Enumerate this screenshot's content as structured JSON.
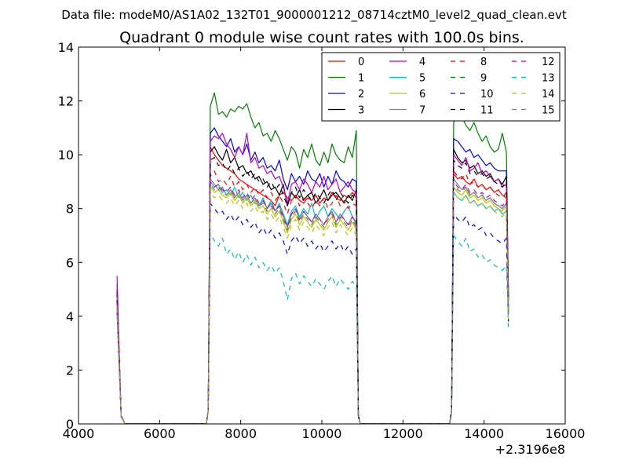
{
  "chart_data": {
    "type": "line",
    "suptitle": "Data file: modeM0/AS1A02_132T01_9000001212_08714cztM0_level2_quad_clean.evt",
    "title": "Quadrant 0 module wise count rates with 100.0s bins.",
    "xlabel": "",
    "ylabel": "",
    "x_offset_label": "+2.3196e8",
    "xlim": [
      4000,
      16000
    ],
    "ylim": [
      0,
      14
    ],
    "xticks": [
      "4000",
      "6000",
      "8000",
      "10000",
      "12000",
      "14000",
      "16000"
    ],
    "yticks": [
      "0",
      "2",
      "4",
      "6",
      "8",
      "10",
      "12",
      "14"
    ],
    "legend": {
      "location": "top-right",
      "columns": 4
    },
    "bin_seconds": 100,
    "segments": [
      {
        "x_start": 4950,
        "x_end": 5050
      },
      {
        "x_start": 7250,
        "x_end": 10850
      },
      {
        "x_start": 13250,
        "x_end": 14550
      }
    ],
    "gap_points": {
      "zero_x": [
        5150,
        7150,
        10950,
        13150
      ],
      "tail_x": 14600
    },
    "series": [
      {
        "name": "0",
        "color": "#ff0000",
        "dash": "solid",
        "first_point": 4.8,
        "tail": 4.4,
        "seg2": [
          10.3,
          10.0,
          9.8,
          9.6,
          9.5,
          9.4,
          9.3,
          9.1,
          9.0,
          8.9,
          8.8,
          8.7,
          8.6,
          8.5,
          8.4,
          8.3,
          8.1,
          8.5,
          8.6,
          8.4,
          8.3,
          8.5,
          8.3,
          8.2,
          8.4,
          8.3,
          8.5,
          8.2,
          8.4,
          8.3,
          8.6,
          8.4,
          8.3,
          8.5,
          8.4,
          8.6,
          8.4
        ],
        "seg3": [
          9.3,
          9.1,
          9.2,
          9.0,
          8.9,
          9.1,
          8.8,
          8.9,
          8.7,
          8.8,
          8.6,
          8.7,
          8.5,
          8.4
        ]
      },
      {
        "name": "1",
        "color": "#008000",
        "dash": "solid",
        "first_point": 5.2,
        "tail": 4.8,
        "seg2": [
          11.8,
          12.3,
          11.5,
          11.6,
          11.4,
          11.7,
          11.6,
          11.8,
          11.7,
          11.9,
          11.4,
          11.0,
          11.2,
          10.7,
          10.8,
          10.5,
          10.9,
          10.6,
          10.2,
          9.8,
          10.3,
          10.1,
          9.5,
          10.2,
          9.9,
          10.4,
          9.8,
          9.6,
          10.1,
          9.7,
          10.4,
          10.0,
          9.8,
          9.7,
          10.3,
          9.9,
          10.9
        ],
        "seg3": [
          11.2,
          11.5,
          11.4,
          11.1,
          10.9,
          11.2,
          10.8,
          10.5,
          10.7,
          10.3,
          10.1,
          10.2,
          10.8,
          10.1
        ]
      },
      {
        "name": "2",
        "color": "#0000ff",
        "dash": "solid",
        "first_point": 5.0,
        "tail": 4.7,
        "seg2": [
          10.8,
          11.0,
          10.7,
          10.5,
          10.3,
          10.6,
          10.1,
          10.3,
          10.0,
          10.4,
          9.8,
          10.1,
          9.7,
          9.9,
          9.5,
          9.6,
          9.4,
          9.8,
          9.1,
          8.7,
          9.3,
          9.0,
          9.2,
          8.9,
          9.4,
          9.1,
          9.0,
          9.3,
          8.8,
          9.2,
          8.9,
          9.4,
          9.1,
          9.0,
          8.8,
          9.1,
          9.0
        ],
        "seg3": [
          10.6,
          10.5,
          10.3,
          10.1,
          10.2,
          9.9,
          10.0,
          9.8,
          9.6,
          9.7,
          9.5,
          9.4,
          9.4,
          9.4
        ]
      },
      {
        "name": "3",
        "color": "#000000",
        "dash": "solid",
        "first_point": 4.9,
        "tail": 4.6,
        "seg2": [
          10.1,
          10.3,
          10.0,
          9.8,
          10.2,
          9.7,
          9.9,
          9.5,
          9.6,
          9.3,
          9.4,
          9.1,
          9.2,
          8.9,
          9.0,
          8.7,
          8.8,
          8.5,
          8.9,
          8.1,
          8.6,
          8.4,
          8.7,
          8.3,
          8.5,
          8.6,
          8.2,
          8.4,
          8.7,
          8.3,
          8.5,
          8.6,
          8.4,
          8.2,
          8.5,
          8.3,
          8.7
        ],
        "seg3": [
          10.2,
          9.9,
          9.7,
          9.8,
          9.5,
          9.6,
          9.3,
          9.4,
          9.2,
          9.3,
          9.0,
          9.1,
          8.9,
          9.2
        ]
      },
      {
        "name": "4",
        "color": "#bf00bf",
        "dash": "solid",
        "first_point": 5.5,
        "tail": 5.0,
        "seg2": [
          10.5,
          10.7,
          10.6,
          10.8,
          10.4,
          10.2,
          9.9,
          10.3,
          10.0,
          10.8,
          9.7,
          9.9,
          9.5,
          9.6,
          9.3,
          9.4,
          9.1,
          9.2,
          8.8,
          8.2,
          8.9,
          9.0,
          8.7,
          9.1,
          8.9,
          8.6,
          9.0,
          8.8,
          9.2,
          8.7,
          8.9,
          9.1,
          8.6,
          8.8,
          9.0,
          8.7,
          8.6
        ],
        "seg3": [
          10.0,
          9.8,
          9.6,
          9.9,
          9.4,
          9.5,
          9.7,
          9.3,
          9.4,
          9.2,
          9.0,
          9.1,
          8.8,
          8.9
        ]
      },
      {
        "name": "5",
        "color": "#00bfbf",
        "dash": "solid",
        "first_point": 4.6,
        "tail": 4.2,
        "seg2": [
          9.0,
          8.8,
          8.9,
          8.6,
          8.7,
          8.5,
          8.8,
          8.4,
          8.6,
          8.3,
          8.5,
          8.2,
          8.1,
          8.4,
          8.0,
          8.3,
          7.9,
          8.2,
          7.8,
          7.4,
          7.9,
          8.1,
          7.7,
          8.0,
          7.8,
          8.2,
          7.6,
          7.9,
          8.1,
          7.7,
          8.0,
          7.8,
          7.6,
          7.9,
          8.1,
          7.7,
          7.5
        ],
        "seg3": [
          8.6,
          8.4,
          8.3,
          8.5,
          8.2,
          8.3,
          8.1,
          8.2,
          8.0,
          8.1,
          7.9,
          8.0,
          7.8,
          7.9
        ]
      },
      {
        "name": "6",
        "color": "#bfbf00",
        "dash": "solid",
        "first_point": 4.5,
        "tail": 4.1,
        "seg2": [
          8.8,
          8.6,
          8.7,
          8.5,
          8.4,
          8.6,
          8.3,
          8.5,
          8.2,
          8.4,
          8.1,
          8.3,
          8.0,
          8.1,
          7.8,
          8.0,
          7.7,
          7.9,
          7.5,
          7.1,
          7.6,
          7.8,
          7.4,
          7.7,
          7.5,
          7.3,
          7.6,
          7.4,
          7.2,
          7.5,
          7.7,
          7.3,
          7.6,
          7.4,
          7.2,
          7.5,
          7.2
        ],
        "seg3": [
          8.8,
          8.6,
          8.5,
          8.7,
          8.4,
          8.5,
          8.3,
          8.4,
          8.2,
          8.3,
          8.1,
          8.0,
          7.9,
          8.1
        ]
      },
      {
        "name": "7",
        "color": "#808080",
        "dash": "solid",
        "first_point": 4.7,
        "tail": 4.3,
        "seg2": [
          9.1,
          8.9,
          8.7,
          8.8,
          8.5,
          8.7,
          8.4,
          8.6,
          8.3,
          8.5,
          8.2,
          8.4,
          8.1,
          8.3,
          8.0,
          8.2,
          7.9,
          8.1,
          7.7,
          7.3,
          7.8,
          8.0,
          7.6,
          7.9,
          7.7,
          7.5,
          7.8,
          7.6,
          7.4,
          7.7,
          7.9,
          7.5,
          7.8,
          7.6,
          7.4,
          7.7,
          7.4
        ],
        "seg3": [
          9.1,
          8.9,
          8.7,
          8.8,
          8.5,
          8.6,
          8.4,
          8.5,
          8.3,
          8.4,
          8.2,
          8.1,
          8.0,
          8.2
        ]
      },
      {
        "name": "8",
        "color": "#ff0000",
        "dash": "dashed",
        "first_point": 4.3,
        "tail": 3.9,
        "seg2": [
          9.2,
          9.4,
          9.0,
          9.1,
          8.9,
          9.2,
          8.8,
          9.0,
          8.7,
          8.9,
          8.6,
          8.8,
          8.5,
          8.7,
          8.4,
          8.6,
          8.3,
          8.5,
          8.2,
          7.8,
          8.3,
          8.5,
          8.1,
          8.4,
          8.2,
          8.0,
          8.3,
          8.1,
          8.4,
          8.0,
          8.2,
          8.5,
          8.1,
          8.3,
          8.0,
          8.2,
          8.1
        ],
        "seg3": [
          9.4,
          9.2,
          9.1,
          9.3,
          8.9,
          9.0,
          8.8,
          8.9,
          8.7,
          8.8,
          8.6,
          8.5,
          8.4,
          8.6
        ]
      },
      {
        "name": "9",
        "color": "#008000",
        "dash": "dashed",
        "first_point": 4.4,
        "tail": 4.0,
        "seg2": [
          8.9,
          8.7,
          8.8,
          8.6,
          8.5,
          8.7,
          8.4,
          8.6,
          8.3,
          8.5,
          8.2,
          8.4,
          8.1,
          8.2,
          7.9,
          8.1,
          7.8,
          8.0,
          7.6,
          7.2,
          7.7,
          7.9,
          7.5,
          7.8,
          7.6,
          7.4,
          7.7,
          7.5,
          7.3,
          7.6,
          7.8,
          7.4,
          7.7,
          7.5,
          7.3,
          7.6,
          7.3
        ],
        "seg3": [
          8.9,
          8.7,
          8.6,
          8.8,
          8.5,
          8.6,
          8.4,
          8.5,
          8.3,
          8.4,
          8.2,
          8.1,
          8.0,
          8.2
        ]
      },
      {
        "name": "10",
        "color": "#0000ff",
        "dash": "dashed",
        "first_point": 4.2,
        "tail": 3.8,
        "seg2": [
          8.2,
          8.0,
          7.8,
          7.9,
          7.6,
          7.8,
          7.5,
          7.7,
          7.4,
          7.6,
          7.3,
          7.5,
          7.1,
          7.3,
          7.0,
          7.2,
          6.9,
          7.1,
          6.8,
          6.3,
          6.8,
          7.0,
          6.7,
          6.9,
          6.6,
          6.8,
          6.5,
          6.7,
          6.4,
          6.6,
          6.8,
          6.5,
          6.7,
          6.4,
          6.6,
          6.3,
          6.5
        ],
        "seg3": [
          7.8,
          7.6,
          7.5,
          7.7,
          7.3,
          7.4,
          7.2,
          7.3,
          7.0,
          7.1,
          6.9,
          6.8,
          6.7,
          6.9
        ]
      },
      {
        "name": "11",
        "color": "#000000",
        "dash": "dashed",
        "first_point": 4.6,
        "tail": 4.2,
        "seg2": [
          9.8,
          9.9,
          9.6,
          9.7,
          9.4,
          9.6,
          9.3,
          9.5,
          9.2,
          9.4,
          9.1,
          9.3,
          9.0,
          9.1,
          8.8,
          9.0,
          8.7,
          8.9,
          8.5,
          8.1,
          8.6,
          8.8,
          8.4,
          8.7,
          8.5,
          8.3,
          8.6,
          8.4,
          8.2,
          8.5,
          8.7,
          8.3,
          8.6,
          8.4,
          8.2,
          8.5,
          8.3
        ],
        "seg3": [
          9.8,
          9.6,
          9.5,
          9.7,
          9.3,
          9.4,
          9.2,
          9.3,
          9.1,
          9.2,
          9.0,
          8.9,
          8.8,
          9.0
        ]
      },
      {
        "name": "12",
        "color": "#bf00bf",
        "dash": "dashed",
        "first_point": 4.5,
        "tail": 4.1,
        "seg2": [
          9.0,
          8.8,
          8.9,
          8.7,
          8.6,
          8.8,
          8.5,
          8.7,
          8.4,
          8.6,
          8.3,
          8.5,
          8.2,
          8.3,
          8.0,
          8.2,
          7.9,
          8.1,
          7.7,
          7.3,
          7.8,
          8.0,
          7.6,
          7.9,
          7.7,
          7.5,
          7.8,
          7.6,
          7.4,
          7.7,
          7.9,
          7.5,
          7.8,
          7.6,
          7.4,
          7.7,
          7.4
        ],
        "seg3": [
          9.0,
          8.8,
          8.7,
          8.9,
          8.6,
          8.7,
          8.5,
          8.6,
          8.4,
          8.5,
          8.3,
          8.2,
          8.1,
          8.3
        ]
      },
      {
        "name": "13",
        "color": "#00bfbf",
        "dash": "dashed",
        "first_point": 4.0,
        "tail": 3.6,
        "seg2": [
          7.1,
          6.8,
          6.6,
          6.9,
          6.3,
          6.5,
          6.1,
          6.4,
          6.0,
          6.3,
          5.9,
          6.2,
          5.8,
          6.0,
          5.7,
          5.9,
          5.6,
          5.8,
          5.3,
          4.6,
          5.4,
          5.6,
          5.2,
          5.5,
          5.3,
          5.1,
          5.4,
          5.2,
          5.0,
          5.3,
          5.5,
          5.1,
          5.4,
          5.2,
          5.0,
          5.3,
          5.1
        ],
        "seg3": [
          7.0,
          6.8,
          6.6,
          6.9,
          6.4,
          6.5,
          6.2,
          6.3,
          6.0,
          6.1,
          5.9,
          5.8,
          5.7,
          5.9
        ]
      },
      {
        "name": "14",
        "color": "#bfbf00",
        "dash": "dashed",
        "first_point": 4.3,
        "tail": 3.9,
        "seg2": [
          8.6,
          8.4,
          8.5,
          8.3,
          8.2,
          8.4,
          8.1,
          8.3,
          8.0,
          8.2,
          7.9,
          8.1,
          7.8,
          7.9,
          7.6,
          7.8,
          7.5,
          7.7,
          7.3,
          6.9,
          7.4,
          7.6,
          7.2,
          7.5,
          7.3,
          7.1,
          7.4,
          7.2,
          7.0,
          7.3,
          7.5,
          7.1,
          7.4,
          7.2,
          7.0,
          7.3,
          7.0
        ],
        "seg3": [
          8.6,
          8.4,
          8.3,
          8.5,
          8.2,
          8.3,
          8.1,
          8.2,
          8.0,
          8.1,
          7.9,
          7.8,
          7.7,
          7.9
        ]
      },
      {
        "name": "15",
        "color": "#808080",
        "dash": "dashed",
        "first_point": 4.4,
        "tail": 4.0,
        "seg2": [
          8.9,
          8.7,
          8.8,
          8.6,
          8.5,
          8.7,
          8.4,
          8.6,
          8.3,
          8.5,
          8.2,
          8.4,
          8.1,
          8.2,
          7.9,
          8.1,
          7.8,
          8.0,
          7.6,
          7.2,
          7.7,
          7.9,
          7.5,
          7.8,
          7.6,
          7.4,
          7.7,
          7.5,
          7.3,
          7.6,
          7.8,
          7.4,
          7.7,
          7.5,
          7.3,
          7.6,
          7.3
        ],
        "seg3": [
          8.9,
          8.7,
          8.6,
          8.8,
          8.5,
          8.6,
          8.4,
          8.5,
          8.3,
          8.4,
          8.2,
          8.1,
          8.0,
          8.2
        ]
      }
    ]
  }
}
